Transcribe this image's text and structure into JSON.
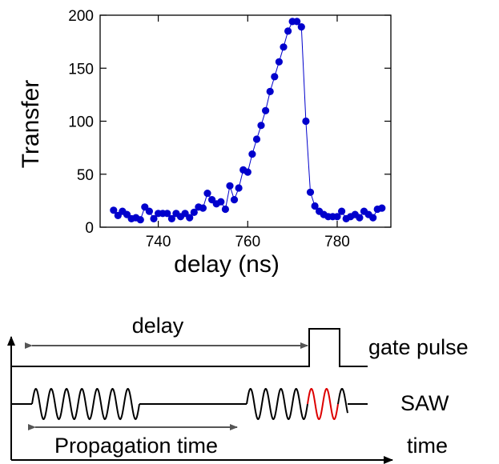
{
  "chart_data": {
    "type": "scatter",
    "xlabel": "delay (ns)",
    "ylabel": "Transfer",
    "xlim": [
      727,
      792
    ],
    "ylim": [
      0,
      200
    ],
    "xticks": [
      740,
      760,
      780
    ],
    "yticks": [
      0,
      50,
      100,
      150,
      200
    ],
    "grid": false,
    "marker_color": "#0000cc",
    "line_color": "#0000cc",
    "series": [
      {
        "x": [
          730,
          731,
          732,
          733,
          734,
          735,
          736,
          737,
          738,
          739,
          740,
          741,
          742,
          743,
          744,
          745,
          746,
          747,
          748,
          749,
          750,
          751,
          752,
          753,
          754,
          755,
          756,
          757,
          758,
          759,
          760,
          761,
          762,
          763,
          764,
          765,
          766,
          767,
          768,
          769,
          770,
          771,
          772,
          773,
          774,
          775,
          776,
          777,
          778,
          779,
          780,
          781,
          782,
          783,
          784,
          785,
          786,
          787,
          788,
          789,
          790
        ],
        "y": [
          16,
          11,
          15,
          12,
          8,
          9,
          7,
          19,
          15,
          8,
          13,
          13,
          13,
          8,
          13,
          10,
          13,
          9,
          14,
          19,
          18,
          32,
          26,
          22,
          24,
          17,
          39,
          26,
          37,
          54,
          52,
          69,
          83,
          96,
          110,
          128,
          142,
          156,
          170,
          185,
          194,
          194,
          189,
          100,
          33,
          20,
          15,
          12,
          10,
          10,
          10,
          15,
          8,
          10,
          12,
          9,
          15,
          12,
          9,
          17,
          18
        ]
      }
    ]
  },
  "diagram": {
    "delay_label": "delay",
    "gate_label": "gate pulse",
    "saw_label": "SAW",
    "propagation_label": "Propagation time",
    "time_label": "time",
    "wave_color": "#000000",
    "highlight_color": "#dd0000",
    "arrow_color": "#555555"
  }
}
